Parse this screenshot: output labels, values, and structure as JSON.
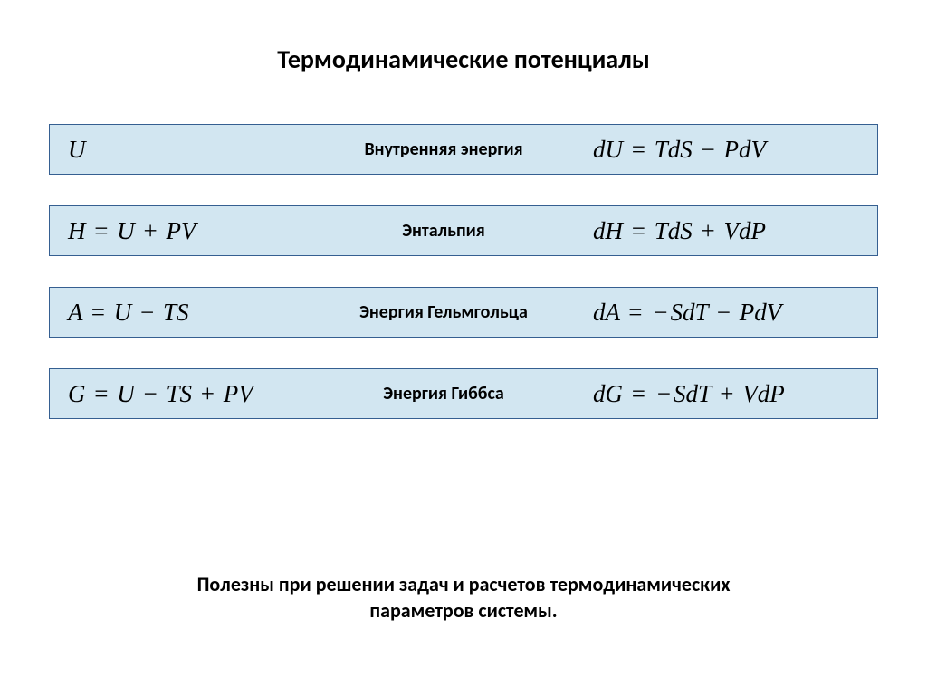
{
  "title": "Термодинамические потенциалы",
  "footer_line1": "Полезны при решении задач и расчетов термодинамических",
  "footer_line2": "параметров системы.",
  "bar_background": "#d2e6f1",
  "bar_border": "#355f91",
  "rows": [
    {
      "symbol_html": "U",
      "name": "Внутренняя энергия",
      "differential_html": "dU <span class='op'>=</span> TdS <span class='op'>−</span> PdV"
    },
    {
      "symbol_html": "H <span class='op'>=</span> U <span class='op'>+</span> PV",
      "name": "Энтальпия",
      "differential_html": "dH <span class='op'>=</span> TdS <span class='op'>+</span> VdP"
    },
    {
      "symbol_html": "A <span class='op'>=</span> U <span class='op'>−</span> TS",
      "name": "Энергия Гельмгольца",
      "differential_html": "dA <span class='op'>=</span> <span class='op'>−</span>SdT <span class='op'>−</span> PdV"
    },
    {
      "symbol_html": "G <span class='op'>=</span> U <span class='op'>−</span> TS <span class='op'>+</span> PV",
      "name": "Энергия Гиббса",
      "differential_html": "dG <span class='op'>=</span> <span class='op'>−</span>SdT <span class='op'>+</span> VdP"
    }
  ]
}
